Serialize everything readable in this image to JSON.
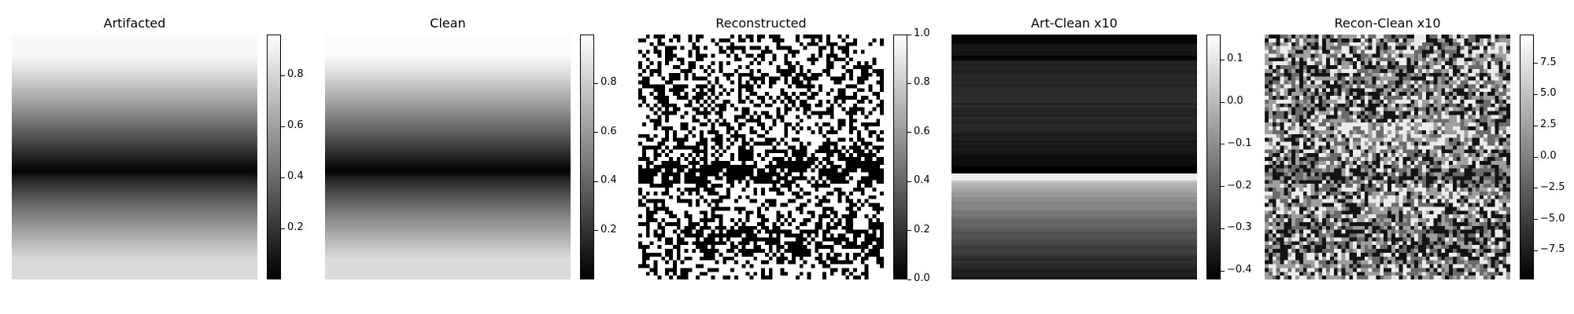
{
  "chart_data": [
    {
      "type": "heatmap",
      "title": "Artifacted",
      "colormap": "gray",
      "pattern": "smooth vertical gradient: near white at top, dark band in the middle, light gray at bottom",
      "colorbar": {
        "range": [
          0.0,
          0.96
        ],
        "ticks": [
          0.2,
          0.4,
          0.6,
          0.8
        ],
        "tick_labels": [
          "0.2",
          "0.4",
          "0.6",
          "0.8"
        ]
      }
    },
    {
      "type": "heatmap",
      "title": "Clean",
      "colormap": "gray",
      "pattern": "smooth vertical gradient identical in shape to Artifacted",
      "colorbar": {
        "range": [
          0.0,
          1.0
        ],
        "ticks": [
          0.2,
          0.4,
          0.6,
          0.8
        ],
        "tick_labels": [
          "0.2",
          "0.4",
          "0.6",
          "0.8"
        ]
      }
    },
    {
      "type": "heatmap",
      "title": "Reconstructed",
      "colormap": "gray",
      "pattern": "noisy binary black/white blocks with horizontal banding",
      "colorbar": {
        "range": [
          0.0,
          1.0
        ],
        "ticks": [
          0.0,
          0.2,
          0.4,
          0.6,
          0.8,
          1.0
        ],
        "tick_labels": [
          "0.0",
          "0.2",
          "0.4",
          "0.6",
          "0.8",
          "1.0"
        ]
      }
    },
    {
      "type": "heatmap",
      "title": "Art-Clean x10",
      "colormap": "gray",
      "pattern": "horizontal bands: dark upper half, thin bright band just below middle, gray fading lower half",
      "colorbar": {
        "range": [
          -0.42,
          0.16
        ],
        "ticks": [
          0.1,
          0.0,
          -0.1,
          -0.2,
          -0.3,
          -0.4
        ],
        "tick_labels": [
          "0.1",
          "0.0",
          "−0.1",
          "−0.2",
          "−0.3",
          "−0.4"
        ]
      }
    },
    {
      "type": "heatmap",
      "title": "Recon-Clean x10",
      "colormap": "gray",
      "pattern": "noisy gray blocks with horizontal banding, bright rows in the middle",
      "colorbar": {
        "range": [
          -9.8,
          9.8
        ],
        "ticks": [
          7.5,
          5.0,
          2.5,
          0.0,
          -2.5,
          -5.0,
          -7.5
        ],
        "tick_labels": [
          "7.5",
          "5.0",
          "2.5",
          "0.0",
          "−2.5",
          "−5.0",
          "−7.5"
        ]
      }
    }
  ]
}
